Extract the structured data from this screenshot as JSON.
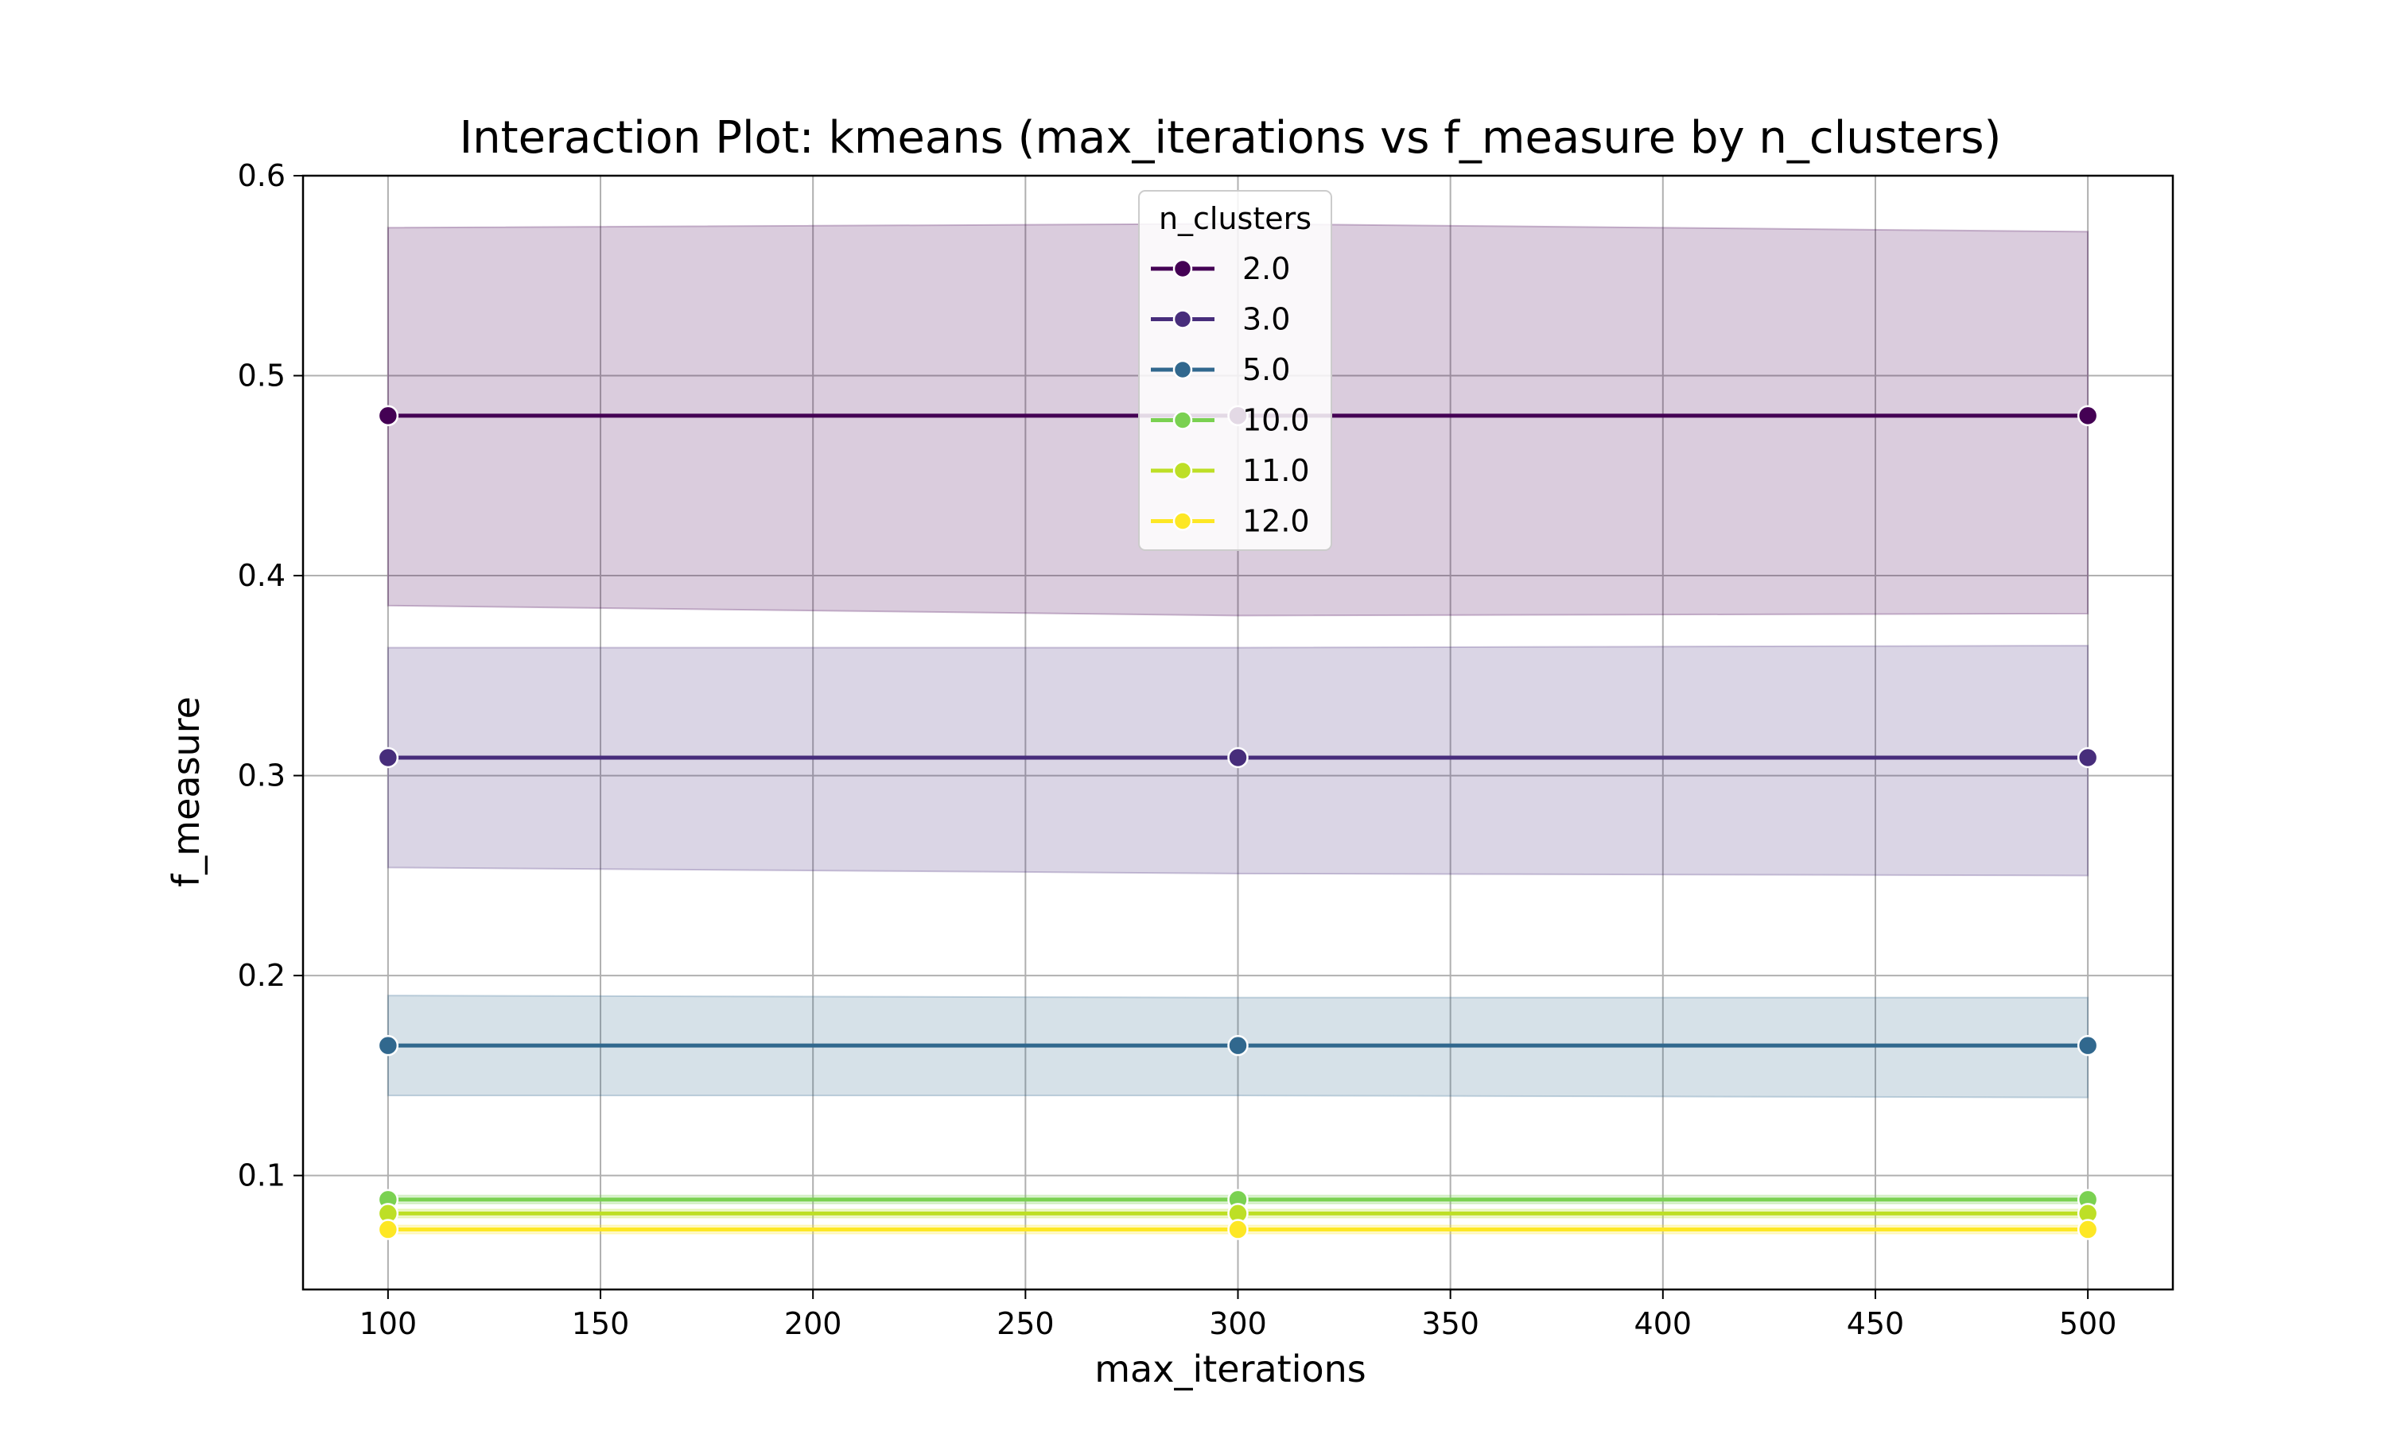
{
  "chart_data": {
    "type": "line",
    "title": "Interaction Plot: kmeans (max_iterations vs f_measure by n_clusters)",
    "xlabel": "max_iterations",
    "ylabel": "f_measure",
    "xlim": [
      80,
      520
    ],
    "ylim": [
      0.043,
      0.6
    ],
    "x_ticks": [
      "100",
      "150",
      "200",
      "250",
      "300",
      "350",
      "400",
      "450",
      "500"
    ],
    "y_ticks": [
      "0.1",
      "0.2",
      "0.3",
      "0.4",
      "0.5",
      "0.6"
    ],
    "grid": true,
    "legend": {
      "title": "n_clusters",
      "placement": "upper-center"
    },
    "x": [
      100,
      300,
      500
    ],
    "series": [
      {
        "name": "2.0",
        "color": "#440154",
        "values": [
          0.48,
          0.48,
          0.48
        ],
        "ci_low": [
          0.385,
          0.38,
          0.381
        ],
        "ci_high": [
          0.574,
          0.576,
          0.572
        ]
      },
      {
        "name": "3.0",
        "color": "#472d7b",
        "values": [
          0.309,
          0.309,
          0.309
        ],
        "ci_low": [
          0.254,
          0.251,
          0.25
        ],
        "ci_high": [
          0.364,
          0.364,
          0.365
        ]
      },
      {
        "name": "5.0",
        "color": "#31688e",
        "values": [
          0.165,
          0.165,
          0.165
        ],
        "ci_low": [
          0.14,
          0.14,
          0.139
        ],
        "ci_high": [
          0.19,
          0.189,
          0.189
        ]
      },
      {
        "name": "10.0",
        "color": "#7ad151",
        "values": [
          0.088,
          0.088,
          0.088
        ],
        "ci_low": [
          0.086,
          0.086,
          0.086
        ],
        "ci_high": [
          0.09,
          0.09,
          0.09
        ]
      },
      {
        "name": "11.0",
        "color": "#bddf26",
        "values": [
          0.081,
          0.081,
          0.081
        ],
        "ci_low": [
          0.079,
          0.079,
          0.079
        ],
        "ci_high": [
          0.083,
          0.083,
          0.083
        ]
      },
      {
        "name": "12.0",
        "color": "#fde725",
        "values": [
          0.073,
          0.073,
          0.073
        ],
        "ci_low": [
          0.071,
          0.071,
          0.071
        ],
        "ci_high": [
          0.075,
          0.075,
          0.075
        ]
      }
    ]
  }
}
